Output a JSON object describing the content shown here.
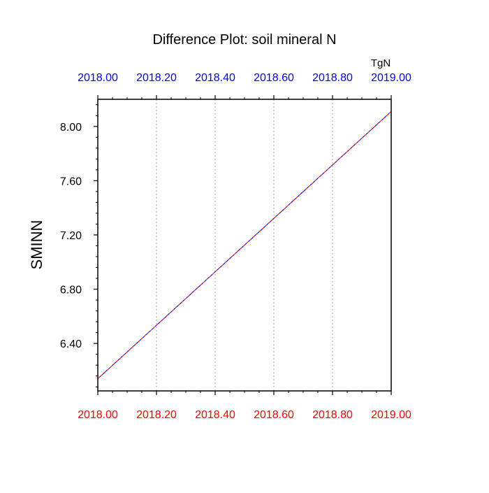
{
  "chart_data": {
    "type": "line",
    "title": "Difference Plot: soil mineral N",
    "units": "TgN",
    "ylabel": "SMINN",
    "xlabel": "",
    "xlim": [
      2018.0,
      2019.0
    ],
    "ylim": [
      6.05,
      8.2
    ],
    "x_ticks": [
      2018.0,
      2018.2,
      2018.4,
      2018.6,
      2018.8,
      2019.0
    ],
    "x_tick_labels": [
      "2018.00",
      "2018.20",
      "2018.40",
      "2018.60",
      "2018.80",
      "2019.00"
    ],
    "y_ticks": [
      6.4,
      6.8,
      7.2,
      7.6,
      8.0
    ],
    "y_tick_labels": [
      "6.40",
      "6.80",
      "7.20",
      "7.60",
      "8.00"
    ],
    "grid": "vertical dotted",
    "bottom_axis_color": "#ff0000",
    "top_axis_color": "#0000ff",
    "series": [
      {
        "color": "#ff0000",
        "style": "dashed",
        "x": [
          2018.0,
          2019.0
        ],
        "y": [
          6.14,
          8.11
        ]
      },
      {
        "color": "#0000ff",
        "style": "dashed",
        "x": [
          2018.0,
          2019.0
        ],
        "y": [
          6.14,
          8.11
        ]
      }
    ]
  }
}
